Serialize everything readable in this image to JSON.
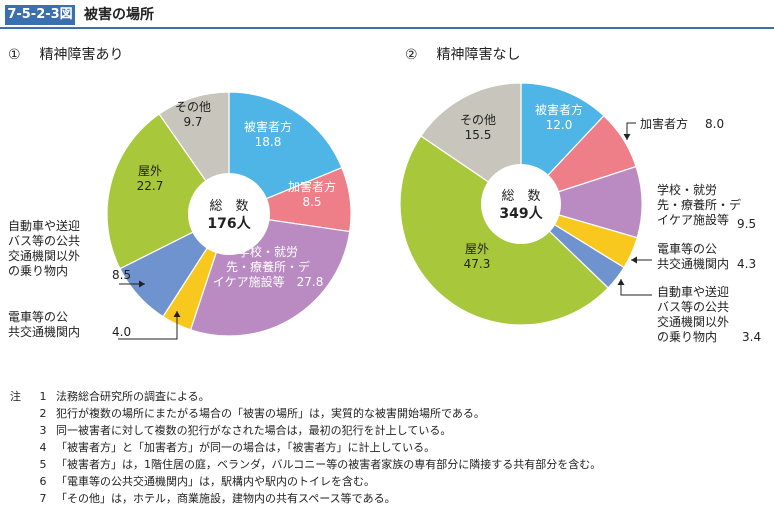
{
  "figure": {
    "number": "7-5-2-3図",
    "title": "被害の場所"
  },
  "chart_data": [
    {
      "type": "pie",
      "subtitle_num": "①",
      "subtitle": "精神障害あり",
      "center_label": "総　数",
      "center_value": "176人",
      "slices": [
        {
          "label": "被害者方",
          "value": 18.8,
          "value_text": "18.8",
          "color": "#4fb4e6"
        },
        {
          "label": "加害者方",
          "value": 8.5,
          "value_text": "8.5",
          "color": "#ee7f88"
        },
        {
          "label": "学校・就労先・療養所・デイケア施設等",
          "value": 27.8,
          "value_text": "27.8",
          "color": "#b98bc2"
        },
        {
          "label": "電車等の公共交通機関内",
          "value": 4.0,
          "value_text": "4.0",
          "color": "#f9c81e"
        },
        {
          "label": "自動車や送迎バス等の公共交通機関以外の乗り物内",
          "value": 8.5,
          "value_text": "8.5",
          "color": "#6f93cf"
        },
        {
          "label": "屋外",
          "value": 22.7,
          "value_text": "22.7",
          "color": "#a9c73b"
        },
        {
          "label": "その他",
          "value": 9.7,
          "value_text": "9.7",
          "color": "#c7c5bc"
        }
      ]
    },
    {
      "type": "pie",
      "subtitle_num": "②",
      "subtitle": "精神障害なし",
      "center_label": "総　数",
      "center_value": "349人",
      "slices": [
        {
          "label": "被害者方",
          "value": 12.0,
          "value_text": "12.0",
          "color": "#4fb4e6"
        },
        {
          "label": "加害者方",
          "value": 8.0,
          "value_text": "8.0",
          "color": "#ee7f88"
        },
        {
          "label": "学校・就労先・療養所・デイケア施設等",
          "value": 9.5,
          "value_text": "9.5",
          "color": "#b98bc2"
        },
        {
          "label": "電車等の公共交通機関内",
          "value": 4.3,
          "value_text": "4.3",
          "color": "#f9c81e"
        },
        {
          "label": "自動車や送迎バス等の公共交通機関以外の乗り物内",
          "value": 3.4,
          "value_text": "3.4",
          "color": "#6f93cf"
        },
        {
          "label": "屋外",
          "value": 47.3,
          "value_text": "47.3",
          "color": "#a9c73b"
        },
        {
          "label": "その他",
          "value": 15.5,
          "value_text": "15.5",
          "color": "#c7c5bc"
        }
      ]
    }
  ],
  "notes": {
    "prefix": "注",
    "items": [
      {
        "num": "1",
        "text": "法務総合研究所の調査による。"
      },
      {
        "num": "2",
        "text": "犯行が複数の場所にまたがる場合の「被害の場所」は，実質的な被害開始場所である。"
      },
      {
        "num": "3",
        "text": "同一被害者に対して複数の犯行がなされた場合は，最初の犯行を計上している。"
      },
      {
        "num": "4",
        "text": "「被害者方」と「加害者方」が同一の場合は，「被害者方」に計上している。"
      },
      {
        "num": "5",
        "text": "「被害者方」は，1階住居の庭，ベランダ，バルコニー等の被害者家族の専有部分に隣接する共有部分を含む。"
      },
      {
        "num": "6",
        "text": "「電車等の公共交通機関内」は，駅構内や駅内のトイレを含む。"
      },
      {
        "num": "7",
        "text": "「その他」は，ホテル，商業施設，建物内の共有スペース等である。"
      }
    ]
  }
}
